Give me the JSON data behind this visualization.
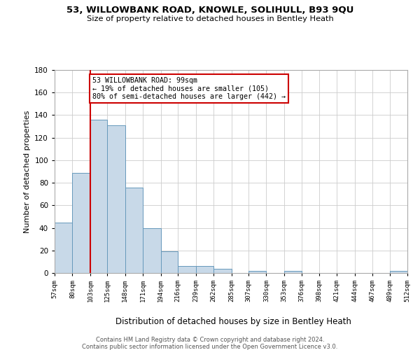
{
  "title1": "53, WILLOWBANK ROAD, KNOWLE, SOLIHULL, B93 9QU",
  "title2": "Size of property relative to detached houses in Bentley Heath",
  "xlabel": "Distribution of detached houses by size in Bentley Heath",
  "ylabel": "Number of detached properties",
  "bar_edges": [
    57,
    80,
    103,
    125,
    148,
    171,
    194,
    216,
    239,
    262,
    285,
    307,
    330,
    353,
    376,
    398,
    421,
    444,
    467,
    489,
    512
  ],
  "bar_heights": [
    45,
    89,
    136,
    131,
    76,
    40,
    19,
    6,
    6,
    4,
    0,
    2,
    0,
    2,
    0,
    0,
    0,
    0,
    0,
    2
  ],
  "tick_labels": [
    "57sqm",
    "80sqm",
    "103sqm",
    "125sqm",
    "148sqm",
    "171sqm",
    "194sqm",
    "216sqm",
    "239sqm",
    "262sqm",
    "285sqm",
    "307sqm",
    "330sqm",
    "353sqm",
    "376sqm",
    "398sqm",
    "421sqm",
    "444sqm",
    "467sqm",
    "489sqm",
    "512sqm"
  ],
  "bar_facecolor": "#c8d9e8",
  "bar_edgecolor": "#6699bb",
  "property_line_x": 103,
  "property_line_color": "#cc0000",
  "annotation_line1": "53 WILLOWBANK ROAD: 99sqm",
  "annotation_line2": "← 19% of detached houses are smaller (105)",
  "annotation_line3": "80% of semi-detached houses are larger (442) →",
  "annotation_box_color": "#cc0000",
  "ylim": [
    0,
    180
  ],
  "yticks": [
    0,
    20,
    40,
    60,
    80,
    100,
    120,
    140,
    160,
    180
  ],
  "footer1": "Contains HM Land Registry data © Crown copyright and database right 2024.",
  "footer2": "Contains public sector information licensed under the Open Government Licence v3.0.",
  "background_color": "#ffffff",
  "grid_color": "#cccccc"
}
